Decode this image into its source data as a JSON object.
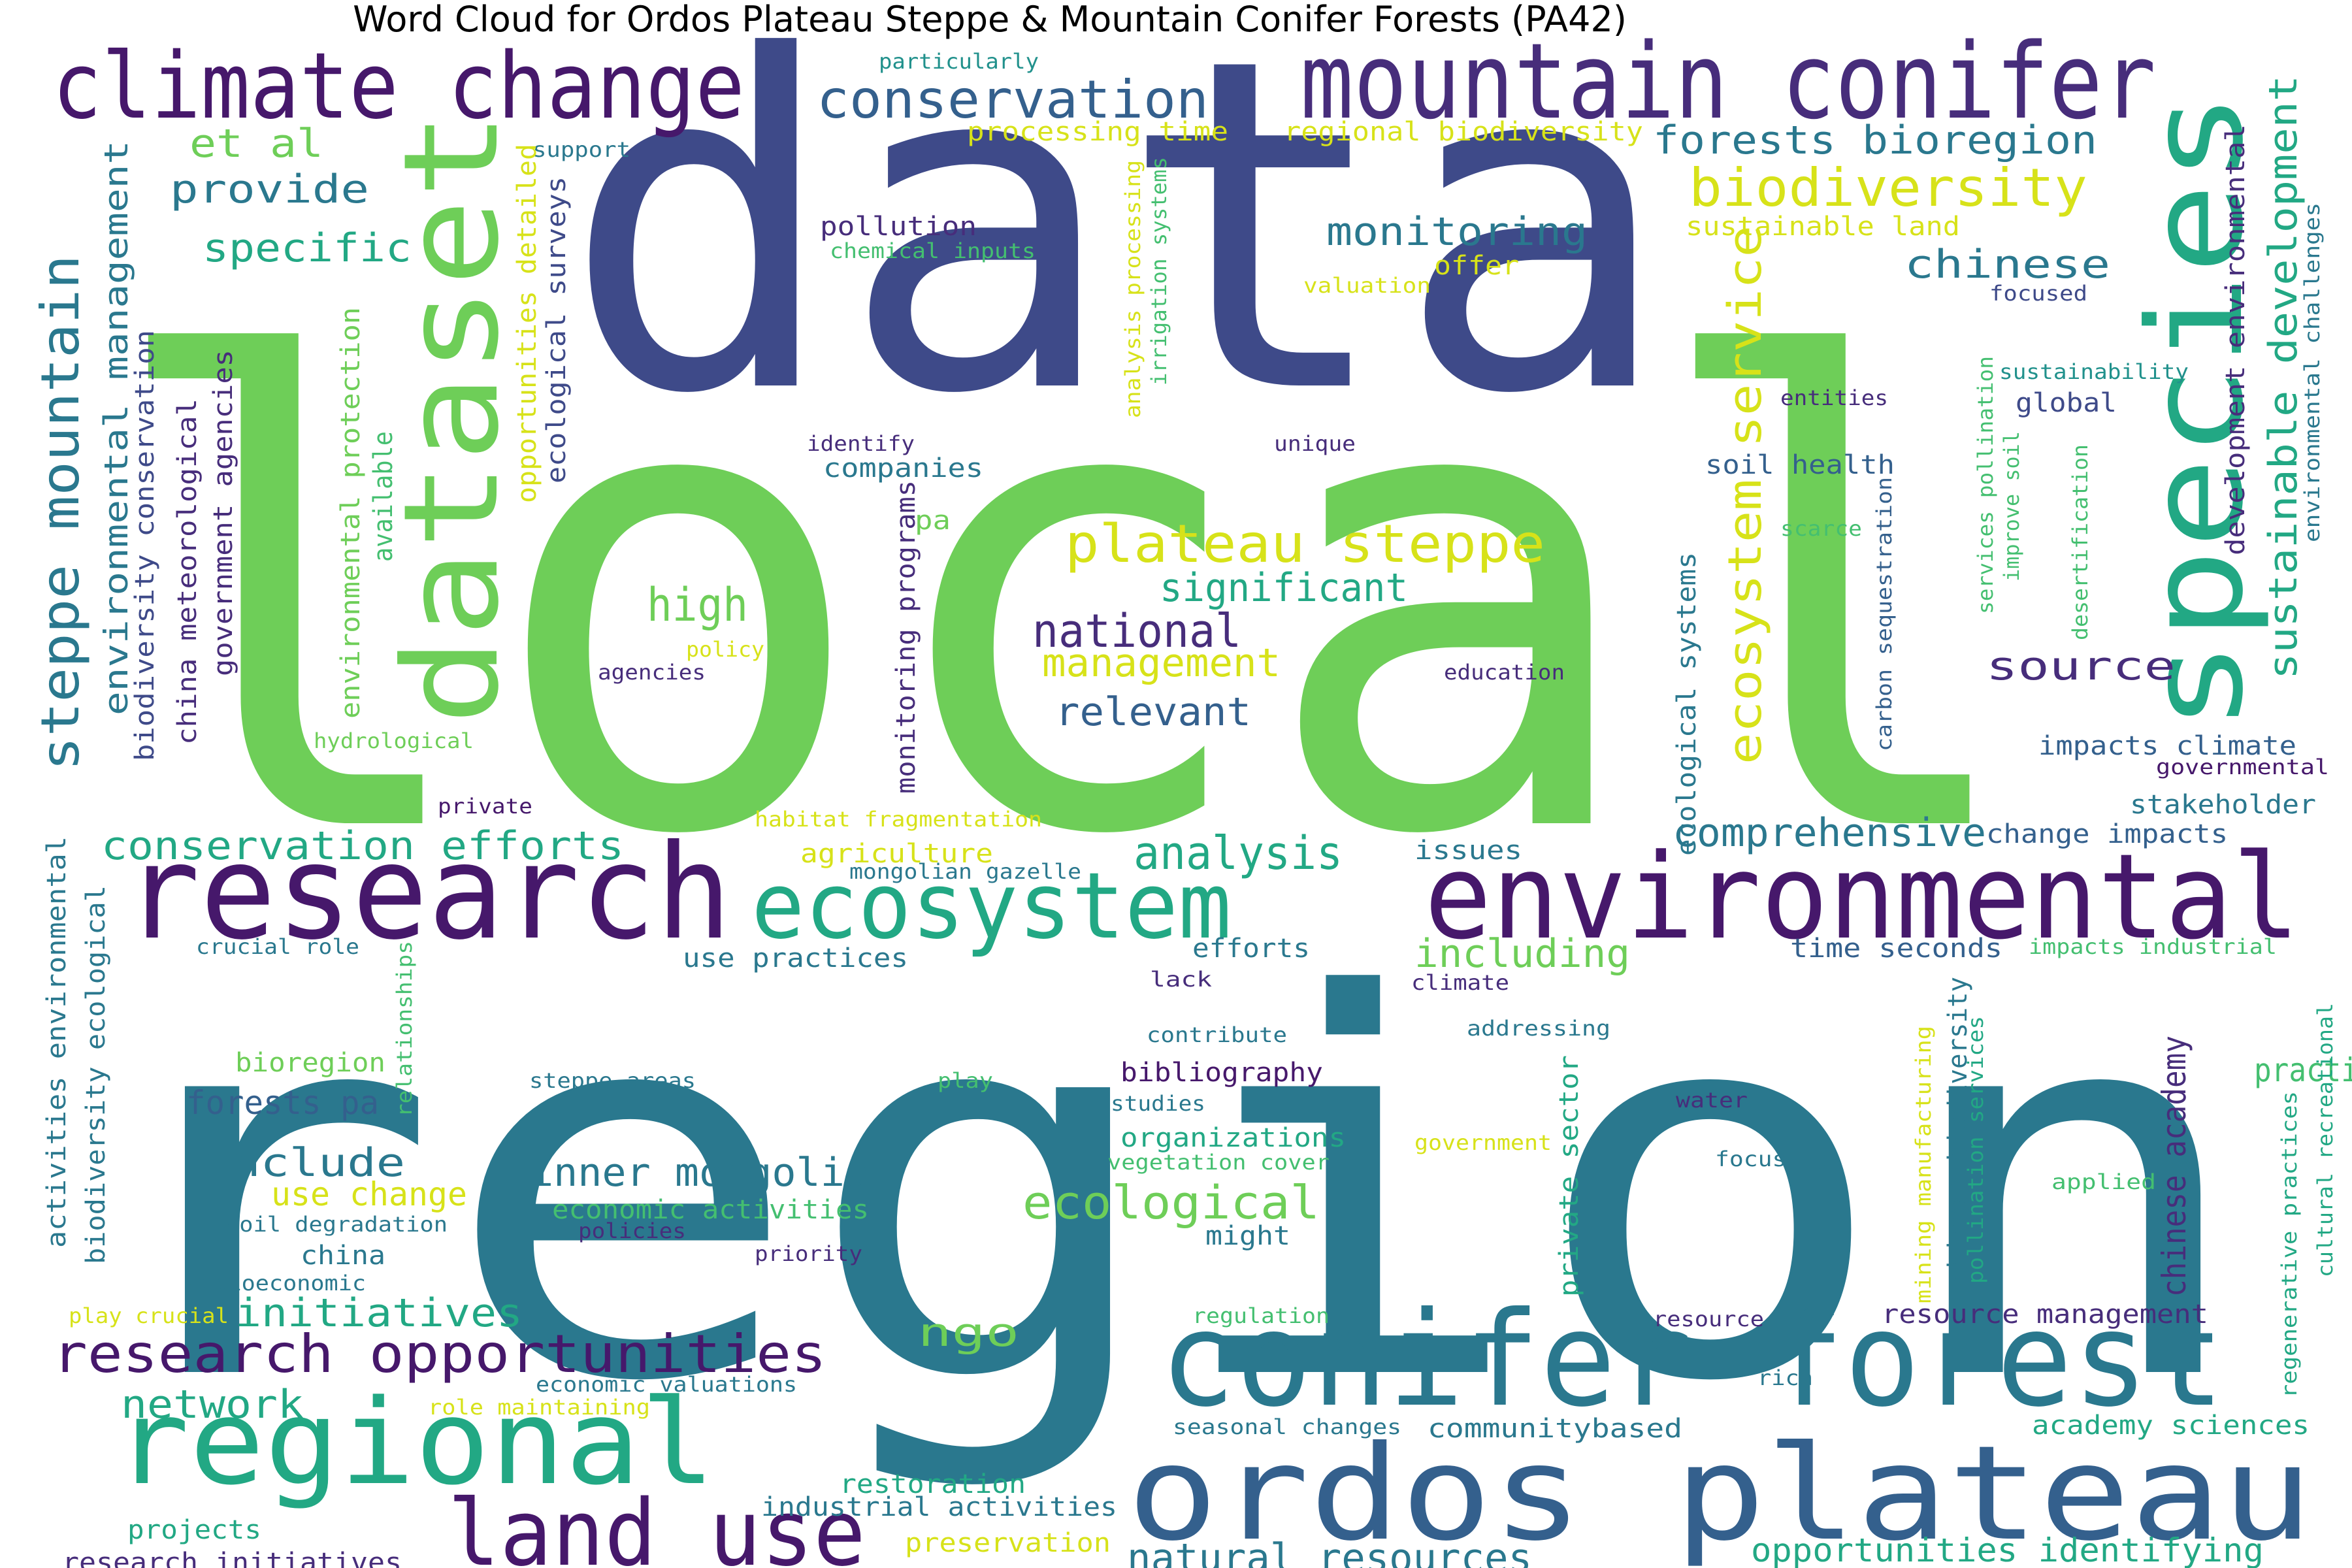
{
  "title": "Word Cloud for Ordos Plateau Steppe & Mountain Conifer Forests (PA42)",
  "palette": {
    "darkpurple": "#46186b",
    "indigo": "#472d7b",
    "slate": "#3e4a89",
    "blue": "#34608d",
    "teal": "#2a788e",
    "teal2": "#21918c",
    "sea": "#22a884",
    "green": "#44bf70",
    "lime": "#6ece58",
    "yellowgreen": "#b5de2b",
    "yellow": "#d7e219"
  },
  "words": [
    {
      "text": "data",
      "color": "slate"
    },
    {
      "text": "local",
      "color": "lime"
    },
    {
      "text": "region",
      "color": "teal"
    },
    {
      "text": "climate change",
      "color": "darkpurple"
    },
    {
      "text": "mountain conifer",
      "color": "indigo"
    },
    {
      "text": "dataset",
      "color": "lime"
    },
    {
      "text": "species",
      "color": "sea"
    },
    {
      "text": "conservation",
      "color": "blue"
    },
    {
      "text": "research",
      "color": "darkpurple"
    },
    {
      "text": "environmental",
      "color": "darkpurple"
    },
    {
      "text": "ecosystem",
      "color": "sea"
    },
    {
      "text": "conifer forest",
      "color": "teal"
    },
    {
      "text": "ordos plateau",
      "color": "blue"
    },
    {
      "text": "regional",
      "color": "sea"
    },
    {
      "text": "land use",
      "color": "darkpurple"
    },
    {
      "text": "research opportunities",
      "color": "darkpurple"
    },
    {
      "text": "plateau steppe",
      "color": "yellow"
    },
    {
      "text": "forests bioregion",
      "color": "teal"
    },
    {
      "text": "biodiversity",
      "color": "yellow"
    },
    {
      "text": "monitoring",
      "color": "teal"
    },
    {
      "text": "chinese",
      "color": "teal"
    },
    {
      "text": "steppe mountain",
      "color": "teal"
    },
    {
      "text": "sustainable development",
      "color": "sea"
    },
    {
      "text": "ecosystem service",
      "color": "yellow"
    },
    {
      "text": "environmental management",
      "color": "teal"
    },
    {
      "text": "et al",
      "color": "lime"
    },
    {
      "text": "provide",
      "color": "teal"
    },
    {
      "text": "specific",
      "color": "sea"
    },
    {
      "text": "particularly",
      "color": "teal2"
    },
    {
      "text": "processing time",
      "color": "yellow"
    },
    {
      "text": "regional biodiversity",
      "color": "yellow"
    },
    {
      "text": "sustainable land",
      "color": "yellow"
    },
    {
      "text": "support",
      "color": "teal"
    },
    {
      "text": "pollution",
      "color": "indigo"
    },
    {
      "text": "chemical inputs",
      "color": "green"
    },
    {
      "text": "offer",
      "color": "yellow"
    },
    {
      "text": "valuation",
      "color": "yellow"
    },
    {
      "text": "focused",
      "color": "slate"
    },
    {
      "text": "sustainability",
      "color": "teal2"
    },
    {
      "text": "global",
      "color": "slate"
    },
    {
      "text": "entities",
      "color": "indigo"
    },
    {
      "text": "soil health",
      "color": "blue"
    },
    {
      "text": "scarce",
      "color": "green"
    },
    {
      "text": "source",
      "color": "indigo"
    },
    {
      "text": "impacts climate",
      "color": "blue"
    },
    {
      "text": "governmental",
      "color": "darkpurple"
    },
    {
      "text": "stakeholder",
      "color": "teal"
    },
    {
      "text": "change impacts",
      "color": "blue"
    },
    {
      "text": "comprehensive",
      "color": "teal"
    },
    {
      "text": "high",
      "color": "lime"
    },
    {
      "text": "policy",
      "color": "yellow"
    },
    {
      "text": "agencies",
      "color": "indigo"
    },
    {
      "text": "national",
      "color": "indigo"
    },
    {
      "text": "management",
      "color": "yellow"
    },
    {
      "text": "relevant",
      "color": "blue"
    },
    {
      "text": "significant",
      "color": "sea"
    },
    {
      "text": "education",
      "color": "indigo"
    },
    {
      "text": "identify",
      "color": "indigo"
    },
    {
      "text": "unique",
      "color": "indigo"
    },
    {
      "text": "companies",
      "color": "teal"
    },
    {
      "text": "pa",
      "color": "lime"
    },
    {
      "text": "private",
      "color": "darkpurple"
    },
    {
      "text": "habitat fragmentation",
      "color": "yellow"
    },
    {
      "text": "hydrological",
      "color": "lime"
    },
    {
      "text": "available",
      "color": "green"
    },
    {
      "text": "environmental protection",
      "color": "lime"
    },
    {
      "text": "opportunities detailed",
      "color": "yellow"
    },
    {
      "text": "ecological surveys",
      "color": "slate"
    },
    {
      "text": "analysis processing",
      "color": "yellow"
    },
    {
      "text": "irrigation systems",
      "color": "green"
    },
    {
      "text": "monitoring programs",
      "color": "indigo"
    },
    {
      "text": "government agencies",
      "color": "indigo"
    },
    {
      "text": "china meteorological",
      "color": "indigo"
    },
    {
      "text": "biodiversity conservation",
      "color": "slate"
    },
    {
      "text": "ecological systems",
      "color": "teal"
    },
    {
      "text": "carbon sequestration",
      "color": "blue"
    },
    {
      "text": "services pollination",
      "color": "green"
    },
    {
      "text": "improve soil",
      "color": "green"
    },
    {
      "text": "desertification",
      "color": "green"
    },
    {
      "text": "development environmental",
      "color": "indigo"
    },
    {
      "text": "environmental challenges",
      "color": "teal"
    },
    {
      "text": "conservation efforts",
      "color": "sea"
    },
    {
      "text": "analysis",
      "color": "sea"
    },
    {
      "text": "agriculture",
      "color": "yellow"
    },
    {
      "text": "mongolian gazelle",
      "color": "teal"
    },
    {
      "text": "issues",
      "color": "teal"
    },
    {
      "text": "including",
      "color": "lime"
    },
    {
      "text": "crucial role",
      "color": "teal"
    },
    {
      "text": "use practices",
      "color": "teal"
    },
    {
      "text": "efforts",
      "color": "teal"
    },
    {
      "text": "lack",
      "color": "indigo"
    },
    {
      "text": "climate",
      "color": "indigo"
    },
    {
      "text": "time seconds",
      "color": "blue"
    },
    {
      "text": "impacts industrial",
      "color": "green"
    },
    {
      "text": "contribute",
      "color": "teal"
    },
    {
      "text": "addressing",
      "color": "teal"
    },
    {
      "text": "bioregion",
      "color": "lime"
    },
    {
      "text": "forests pa",
      "color": "blue"
    },
    {
      "text": "steppe areas",
      "color": "teal"
    },
    {
      "text": "play",
      "color": "green"
    },
    {
      "text": "bibliography",
      "color": "darkpurple"
    },
    {
      "text": "studies",
      "color": "teal"
    },
    {
      "text": "water",
      "color": "indigo"
    },
    {
      "text": "focusing",
      "color": "teal"
    },
    {
      "text": "applied",
      "color": "green"
    },
    {
      "text": "include",
      "color": "teal"
    },
    {
      "text": "use change",
      "color": "yellow"
    },
    {
      "text": "soil degradation",
      "color": "teal"
    },
    {
      "text": "china",
      "color": "teal"
    },
    {
      "text": "inner mongolia",
      "color": "teal"
    },
    {
      "text": "economic activities",
      "color": "green"
    },
    {
      "text": "policies",
      "color": "indigo"
    },
    {
      "text": "organizations",
      "color": "sea"
    },
    {
      "text": "vegetation cover",
      "color": "green"
    },
    {
      "text": "government",
      "color": "yellow"
    },
    {
      "text": "ecological",
      "color": "lime"
    },
    {
      "text": "might",
      "color": "teal"
    },
    {
      "text": "priority",
      "color": "indigo"
    },
    {
      "text": "socioeconomic",
      "color": "teal"
    },
    {
      "text": "play crucial",
      "color": "yellow"
    },
    {
      "text": "initiatives",
      "color": "sea"
    },
    {
      "text": "ngo",
      "color": "lime"
    },
    {
      "text": "regulation",
      "color": "green"
    },
    {
      "text": "resource",
      "color": "indigo"
    },
    {
      "text": "resource management",
      "color": "indigo"
    },
    {
      "text": "rich",
      "color": "teal"
    },
    {
      "text": "network",
      "color": "sea"
    },
    {
      "text": "economic valuations",
      "color": "teal"
    },
    {
      "text": "role maintaining",
      "color": "yellow"
    },
    {
      "text": "seasonal changes",
      "color": "teal"
    },
    {
      "text": "communitybased",
      "color": "teal"
    },
    {
      "text": "academy sciences",
      "color": "sea"
    },
    {
      "text": "restoration",
      "color": "sea"
    },
    {
      "text": "industrial activities",
      "color": "teal"
    },
    {
      "text": "projects",
      "color": "sea"
    },
    {
      "text": "preservation",
      "color": "yellow"
    },
    {
      "text": "research initiatives",
      "color": "indigo"
    },
    {
      "text": "natural resources",
      "color": "teal"
    },
    {
      "text": "opportunities identifying",
      "color": "sea"
    },
    {
      "text": "activities environmental",
      "color": "teal"
    },
    {
      "text": "biodiversity ecological",
      "color": "teal"
    },
    {
      "text": "relationships",
      "color": "green"
    },
    {
      "text": "private sector",
      "color": "sea"
    },
    {
      "text": "chinese biodiversity",
      "color": "teal"
    },
    {
      "text": "pollination services",
      "color": "sea"
    },
    {
      "text": "mining manufacturing",
      "color": "yellow"
    },
    {
      "text": "chinese academy",
      "color": "indigo"
    },
    {
      "text": "practices",
      "color": "green"
    },
    {
      "text": "regenerative practices",
      "color": "sea"
    },
    {
      "text": "cultural recreational",
      "color": "sea"
    }
  ]
}
